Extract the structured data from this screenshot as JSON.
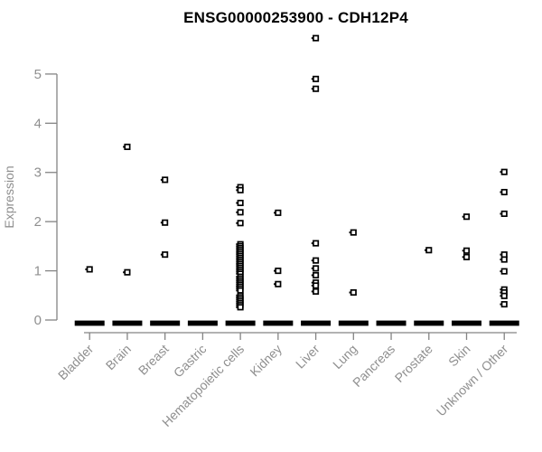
{
  "chart_data": {
    "type": "scatter",
    "variant": "strip-plot",
    "title": "ENSG00000253900 - CDH12P4",
    "xlabel": "",
    "ylabel": "Expression",
    "ylim": [
      0,
      5.8
    ],
    "yticks": [
      0,
      1,
      2,
      3,
      4,
      5
    ],
    "grid": false,
    "legend": "none",
    "marker": "open-square",
    "colors": {
      "title": "#000000",
      "axis": "#848484",
      "tick_labels": "#8f8f8f",
      "marker": "#000000",
      "background": "#ffffff"
    },
    "categories": [
      "Bladder",
      "Brain",
      "Breast",
      "Gastric",
      "Hematopoietic cells",
      "Kidney",
      "Liver",
      "Lung",
      "Pancreas",
      "Prostate",
      "Skin",
      "Unknown / Other"
    ],
    "series": [
      {
        "category": "Bladder",
        "values": [
          1.03
        ],
        "zero_cluster": true
      },
      {
        "category": "Brain",
        "values": [
          3.52,
          0.97
        ],
        "zero_cluster": true
      },
      {
        "category": "Breast",
        "values": [
          2.85,
          1.98,
          1.33
        ],
        "zero_cluster": true
      },
      {
        "category": "Gastric",
        "values": [],
        "zero_cluster": true
      },
      {
        "category": "Hematopoietic cells",
        "values": [
          2.7,
          2.64,
          2.38,
          2.19,
          1.97,
          1.54,
          1.5,
          1.46,
          1.42,
          1.38,
          1.34,
          1.3,
          1.26,
          1.22,
          1.18,
          1.14,
          1.1,
          1.06,
          1.02,
          0.98,
          0.94,
          0.88,
          0.84,
          0.8,
          0.76,
          0.72,
          0.68,
          0.64,
          0.6,
          0.5,
          0.46,
          0.42,
          0.38,
          0.34,
          0.3,
          0.26
        ],
        "zero_cluster": true
      },
      {
        "category": "Kidney",
        "values": [
          2.18,
          1.0,
          0.73
        ],
        "zero_cluster": true
      },
      {
        "category": "Liver",
        "values": [
          5.73,
          4.9,
          4.7,
          1.56,
          1.21,
          1.05,
          0.91,
          0.76,
          0.7,
          0.58
        ],
        "zero_cluster": true
      },
      {
        "category": "Lung",
        "values": [
          1.78,
          0.56
        ],
        "zero_cluster": true
      },
      {
        "category": "Pancreas",
        "values": [],
        "zero_cluster": true
      },
      {
        "category": "Prostate",
        "values": [
          1.42
        ],
        "zero_cluster": true
      },
      {
        "category": "Skin",
        "values": [
          2.1,
          1.41,
          1.28
        ],
        "zero_cluster": true
      },
      {
        "category": "Unknown / Other",
        "values": [
          3.01,
          2.6,
          2.16,
          1.33,
          1.23,
          0.99,
          0.62,
          0.56,
          0.49,
          0.32
        ],
        "zero_cluster": true
      }
    ],
    "zero_cluster_note": "dense row of overlapping points at expression 0 in every category, rendered as a thick black dash"
  }
}
